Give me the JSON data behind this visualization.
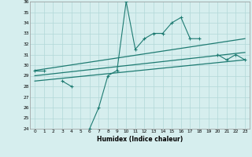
{
  "xlabel": "Humidex (Indice chaleur)",
  "x": [
    0,
    1,
    2,
    3,
    4,
    5,
    6,
    7,
    8,
    9,
    10,
    11,
    12,
    13,
    14,
    15,
    16,
    17,
    18,
    19,
    20,
    21,
    22,
    23
  ],
  "line1": [
    29.5,
    29.5,
    null,
    28.5,
    28.0,
    null,
    24.0,
    26.0,
    29.0,
    29.5,
    36.0,
    31.5,
    32.5,
    33.0,
    33.0,
    34.0,
    34.5,
    32.5,
    32.5,
    null,
    31.0,
    30.5,
    31.0,
    30.5
  ],
  "line2_x": [
    0,
    23
  ],
  "line2_y": [
    29.5,
    32.5
  ],
  "line3_x": [
    0,
    23
  ],
  "line3_y": [
    29.0,
    31.2
  ],
  "line4_x": [
    0,
    23
  ],
  "line4_y": [
    28.5,
    30.5
  ],
  "ylim": [
    24,
    36
  ],
  "xlim": [
    -0.5,
    23.5
  ],
  "yticks": [
    24,
    25,
    26,
    27,
    28,
    29,
    30,
    31,
    32,
    33,
    34,
    35,
    36
  ],
  "xticks": [
    0,
    1,
    2,
    3,
    4,
    5,
    6,
    7,
    8,
    9,
    10,
    11,
    12,
    13,
    14,
    15,
    16,
    17,
    18,
    19,
    20,
    21,
    22,
    23
  ],
  "color": "#1e7b72",
  "bg_color": "#d6eeee",
  "grid_color": "#b2d8d8"
}
